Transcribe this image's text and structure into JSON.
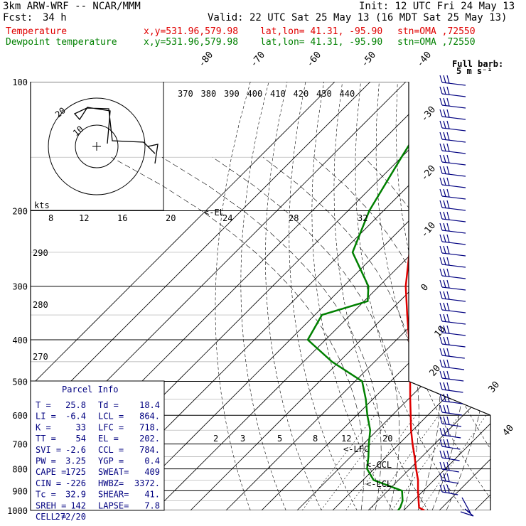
{
  "header": {
    "model": "3km ARW-WRF -- NCAR/MMM",
    "init": "Init: 12 UTC Fri 24 May 13",
    "fcst_label": "Fcst:",
    "fcst_value": "34 h",
    "valid": "Valid: 22 UTC Sat 25 May 13 (16 MDT Sat 25 May 13)",
    "temp_name": "Temperature",
    "dew_name": "Dewpoint temperature",
    "xy": "x,y=531.96,579.98",
    "latlon": "lat,lon= 41.31, -95.90",
    "stn": "stn=OMA ,72550"
  },
  "colors": {
    "temperature": "#e00000",
    "dewpoint": "#008000",
    "box_text": "#000080",
    "wind": "#000080"
  },
  "barb_legend": {
    "line1": "Full barb:",
    "line2": "5 m s⁻¹"
  },
  "parcel_info": {
    "title": "Parcel Info",
    "rows": [
      [
        "T  =",
        "25.8",
        "Td =",
        "18.4"
      ],
      [
        "LI =",
        "-6.4",
        "LCL =",
        "864."
      ],
      [
        "K  =",
        "33",
        "LFC =",
        "718."
      ],
      [
        "TT =",
        "54",
        "EL =",
        "202."
      ],
      [
        "SVI =",
        "-2.6",
        "CCL =",
        "784."
      ],
      [
        "PW =",
        "3.25",
        "YGP =",
        "0.4"
      ],
      [
        "CAPE =",
        "1725",
        "SWEAT=",
        "409"
      ],
      [
        "CIN =",
        "-226",
        "HWBZ=",
        "3372."
      ],
      [
        "Tc =",
        "32.9",
        "SHEAR=",
        "41."
      ],
      [
        "SREH =",
        "142",
        "LAPSE=",
        "7.8"
      ],
      [
        "CELL =",
        "272/20",
        "",
        ""
      ]
    ]
  },
  "hodograph": {
    "units_label": "kts",
    "ring_labels": [
      "10",
      "20"
    ]
  },
  "level_labels": {
    "el": "<-EL",
    "lfc": "<-LFC",
    "ccl": "<-CCL",
    "lcl": "<-LCL"
  },
  "chart_data": {
    "type": "line",
    "title": "",
    "xlabel": "",
    "ylabel": "",
    "y_scale": "log-pressure",
    "pressure_ticks": [
      100,
      200,
      300,
      400,
      500,
      600,
      700,
      800,
      900,
      1000
    ],
    "temperature_ticks": [
      -80,
      -70,
      -60,
      -50,
      -40,
      -30,
      -20,
      -10,
      0,
      10,
      20,
      30,
      40
    ],
    "theta_labels": [
      "370",
      "380",
      "390",
      "400",
      "410",
      "420",
      "430",
      "440"
    ],
    "theta_e_labels": [
      "290",
      "280",
      "270"
    ],
    "mixing_ratio_labels_upper": [
      "8",
      "12",
      "16",
      "20",
      "24",
      "28",
      "32"
    ],
    "mixing_ratio_labels_lower": [
      "2",
      "3",
      "5",
      "8",
      "12",
      "20"
    ],
    "series": [
      {
        "name": "Temperature",
        "pressure": [
          1000,
          985,
          950,
          900,
          850,
          800,
          750,
          700,
          650,
          600,
          550,
          500,
          450,
          400,
          350,
          300,
          250,
          200,
          150,
          125,
          100
        ],
        "values": [
          25.8,
          23.5,
          21.5,
          18.5,
          15.5,
          11.8,
          8.0,
          3.8,
          -0.5,
          -4.8,
          -9.5,
          -14.5,
          -20.0,
          -26.5,
          -34.0,
          -42.5,
          -51.0,
          -61.0,
          -61.0,
          -58.0,
          -55.0
        ]
      },
      {
        "name": "Dewpoint temperature",
        "pressure": [
          1000,
          985,
          950,
          900,
          850,
          800,
          750,
          700,
          650,
          600,
          550,
          500,
          450,
          400,
          350,
          325,
          300,
          250,
          200,
          150,
          100
        ],
        "values": [
          18.4,
          18.2,
          17.0,
          14.0,
          3.0,
          -2.0,
          -5.0,
          -8.5,
          -12.0,
          -17.0,
          -22.0,
          -28.0,
          -42.0,
          -55.0,
          -58.0,
          -49.0,
          -53.0,
          -67.0,
          -74.0,
          -80.0,
          -88.0
        ]
      }
    ],
    "wind_profile_note": "wind barbs plotted along right margin"
  }
}
